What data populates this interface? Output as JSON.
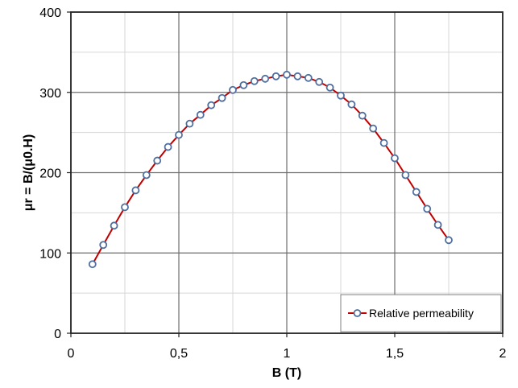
{
  "chart_data": {
    "type": "line",
    "xlabel": "B (T)",
    "ylabel": "μr = B/(μ0.H)",
    "xlim": [
      0,
      2
    ],
    "ylim": [
      0,
      400
    ],
    "x_ticks": [
      0,
      0.5,
      1,
      1.5,
      2
    ],
    "x_tick_labels": [
      "0",
      "0,5",
      "1",
      "1,5",
      "2"
    ],
    "y_ticks": [
      0,
      100,
      200,
      300,
      400
    ],
    "y_tick_labels": [
      "0",
      "100",
      "200",
      "300",
      "400"
    ],
    "x_minor_gridlines": [
      0.25,
      0.75,
      1.25,
      1.75
    ],
    "y_minor_gridlines": [
      50,
      150,
      250,
      350
    ],
    "grid": true,
    "legend": {
      "position": "bottom-right",
      "entries": [
        "Relative permeability"
      ]
    },
    "series": [
      {
        "name": "Relative permeability",
        "line_color": "#c00000",
        "marker_edge_color": "#4f6f9f",
        "marker_fill_color": "#ffffff",
        "x": [
          0.1,
          0.15,
          0.2,
          0.25,
          0.3,
          0.35,
          0.4,
          0.45,
          0.5,
          0.55,
          0.6,
          0.65,
          0.7,
          0.75,
          0.8,
          0.85,
          0.9,
          0.95,
          1.0,
          1.05,
          1.1,
          1.15,
          1.2,
          1.25,
          1.3,
          1.35,
          1.4,
          1.45,
          1.5,
          1.55,
          1.6,
          1.65,
          1.7,
          1.75
        ],
        "y": [
          86,
          110,
          134,
          157,
          178,
          197,
          215,
          232,
          247,
          261,
          272,
          284,
          293,
          303,
          309,
          314,
          317,
          320,
          322,
          320,
          318,
          313,
          306,
          296,
          285,
          271,
          255,
          237,
          218,
          197,
          176,
          155,
          135,
          116
        ]
      }
    ]
  }
}
